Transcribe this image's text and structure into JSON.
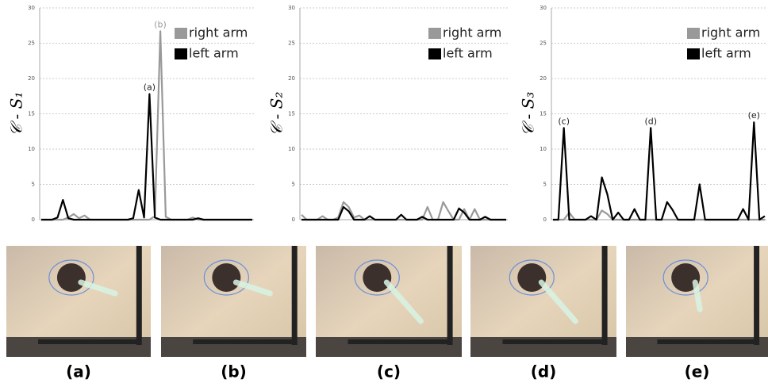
{
  "chart_data": [
    {
      "type": "line",
      "ylabel": "𝒞 - S₁",
      "ylim": [
        0,
        30
      ],
      "yticks": [
        0,
        5,
        10,
        15,
        20,
        25,
        30
      ],
      "grid": true,
      "legend": "upper right",
      "series": [
        {
          "name": "right arm",
          "color": "#999999",
          "values": [
            0,
            0,
            0,
            0,
            0,
            0.3,
            0.8,
            0.2,
            0.6,
            0,
            0,
            0,
            0,
            0,
            0,
            0,
            0,
            0,
            0,
            0,
            0,
            0.5,
            26.7,
            0.4,
            0,
            0,
            0,
            0,
            0.3,
            0,
            0,
            0,
            0,
            0,
            0,
            0,
            0,
            0,
            0,
            0
          ]
        },
        {
          "name": "left arm",
          "color": "#000000",
          "values": [
            0,
            0,
            0,
            0.3,
            2.8,
            0.2,
            0,
            0,
            0,
            0,
            0,
            0,
            0,
            0,
            0,
            0,
            0,
            0.2,
            4.2,
            0.3,
            17.8,
            0.3,
            0,
            0,
            0,
            0,
            0,
            0,
            0,
            0.2,
            0,
            0,
            0,
            0,
            0,
            0,
            0,
            0,
            0,
            0
          ]
        }
      ],
      "annotations": [
        "(a)",
        "(b)"
      ]
    },
    {
      "type": "line",
      "ylabel": "𝒞 - S₂",
      "ylim": [
        0,
        30
      ],
      "yticks": [
        0,
        5,
        10,
        15,
        20,
        25,
        30
      ],
      "grid": true,
      "legend": "upper right",
      "series": [
        {
          "name": "right arm",
          "color": "#999999",
          "values": [
            0.7,
            0,
            0,
            0,
            0.5,
            0,
            0,
            0.3,
            2.5,
            1.8,
            0.3,
            0.6,
            0,
            0,
            0,
            0,
            0,
            0,
            0,
            0,
            0,
            0,
            0,
            0,
            1.8,
            0,
            0,
            2.5,
            1.2,
            0,
            0,
            1.5,
            0,
            1.5,
            0,
            0,
            0,
            0,
            0,
            0
          ]
        },
        {
          "name": "left arm",
          "color": "#000000",
          "values": [
            0,
            0,
            0,
            0,
            0,
            0,
            0,
            0,
            1.8,
            1.2,
            0,
            0,
            0,
            0.5,
            0,
            0,
            0,
            0,
            0,
            0.7,
            0,
            0,
            0,
            0.4,
            0,
            0,
            0,
            0,
            0,
            0,
            1.6,
            1.0,
            0,
            0,
            0,
            0.4,
            0,
            0,
            0,
            0
          ]
        }
      ]
    },
    {
      "type": "line",
      "ylabel": "𝒞 - S₃",
      "ylim": [
        0,
        30
      ],
      "yticks": [
        0,
        5,
        10,
        15,
        20,
        25,
        30
      ],
      "grid": true,
      "legend": "upper right",
      "series": [
        {
          "name": "right arm",
          "color": "#999999",
          "values": [
            0,
            0,
            0,
            1.0,
            0,
            0,
            0,
            0,
            0,
            1.3,
            0.8,
            0,
            0,
            0,
            0,
            0,
            0,
            0,
            0,
            0,
            0,
            0,
            0,
            0,
            0,
            0,
            0,
            0,
            0,
            0,
            0,
            0,
            0,
            0,
            0,
            0,
            0,
            0,
            0,
            0
          ]
        },
        {
          "name": "left arm",
          "color": "#000000",
          "values": [
            0,
            0,
            13.0,
            0,
            0,
            0,
            0,
            0.5,
            0,
            6.0,
            3.6,
            0,
            1.0,
            0,
            0,
            1.5,
            0,
            0,
            13.0,
            0,
            0,
            2.5,
            1.4,
            0,
            0,
            0,
            0,
            5.0,
            0,
            0,
            0,
            0,
            0,
            0,
            0,
            1.5,
            0,
            13.8,
            0,
            0.5
          ]
        }
      ],
      "annotations": [
        "(c)",
        "(d)",
        "(e)"
      ]
    }
  ],
  "panels": [
    "(a)",
    "(b)",
    "(c)",
    "(d)",
    "(e)"
  ]
}
